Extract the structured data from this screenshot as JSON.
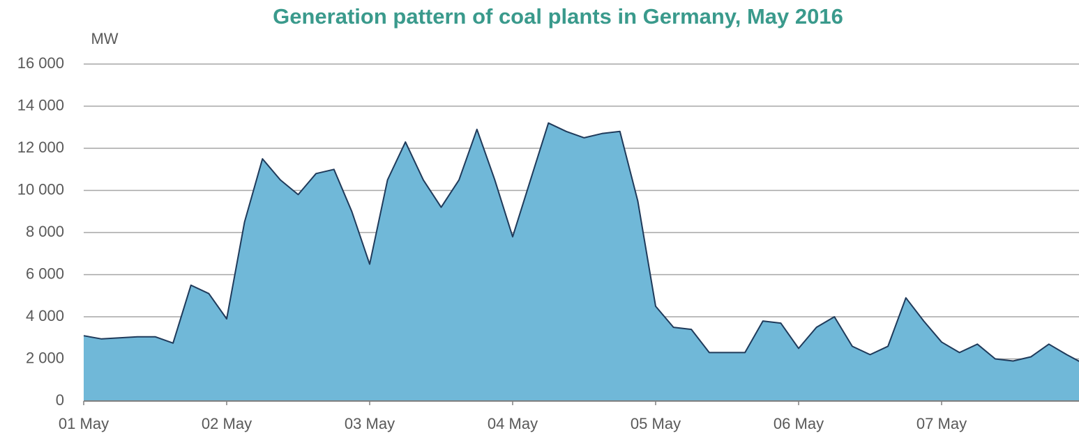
{
  "chart_data": {
    "type": "area",
    "title": "Generation pattern of coal plants in Germany, May 2016",
    "y_axis_label": "MW",
    "x": [
      0,
      0.125,
      0.25,
      0.375,
      0.5,
      0.625,
      0.75,
      0.875,
      1,
      1.125,
      1.25,
      1.375,
      1.5,
      1.625,
      1.75,
      1.875,
      2,
      2.125,
      2.25,
      2.375,
      2.5,
      2.625,
      2.75,
      2.875,
      3,
      3.125,
      3.25,
      3.375,
      3.5,
      3.625,
      3.75,
      3.875,
      4,
      4.125,
      4.25,
      4.375,
      4.5,
      4.625,
      4.75,
      4.875,
      5,
      5.125,
      5.25,
      5.375,
      5.5,
      5.625,
      5.75,
      5.875,
      6,
      6.125,
      6.25,
      6.375,
      6.5,
      6.625,
      6.75,
      6.875,
      7
    ],
    "values": [
      3100,
      2950,
      3000,
      3050,
      3050,
      2750,
      5500,
      5100,
      3900,
      8500,
      11500,
      10500,
      9800,
      10800,
      11000,
      9000,
      6500,
      10500,
      12300,
      10500,
      9200,
      10500,
      12900,
      10500,
      7800,
      10500,
      13200,
      12800,
      12500,
      12700,
      12800,
      9500,
      4500,
      3500,
      3400,
      2300,
      2300,
      2300,
      3800,
      3700,
      2500,
      3500,
      4000,
      2600,
      2200,
      2600,
      4900,
      3800,
      2800,
      2300,
      2700,
      2000,
      1900,
      2100,
      2700,
      2200,
      1750
    ],
    "color": "#70b8d8",
    "line_color": "#1f3a5a",
    "xlim": [
      0,
      7
    ],
    "xticks": [
      {
        "value": 0,
        "label": "01 May"
      },
      {
        "value": 1,
        "label": "02 May"
      },
      {
        "value": 2,
        "label": "03 May"
      },
      {
        "value": 3,
        "label": "04 May"
      },
      {
        "value": 4,
        "label": "05 May"
      },
      {
        "value": 5,
        "label": "06 May"
      },
      {
        "value": 6,
        "label": "07 May"
      }
    ],
    "ylim": [
      0,
      16000
    ],
    "yticks": [
      0,
      {
        "value": 2000,
        "label": "2 000"
      },
      {
        "value": 4000,
        "label": "4 000"
      },
      {
        "value": 6000,
        "label": "6 000"
      },
      {
        "value": 8000,
        "label": "8 000"
      },
      {
        "value": 10000,
        "label": "10 000"
      },
      {
        "value": 12000,
        "label": "12 000"
      },
      {
        "value": 14000,
        "label": "14 000"
      },
      {
        "value": 16000,
        "label": "16 000"
      }
    ],
    "grid": true
  }
}
